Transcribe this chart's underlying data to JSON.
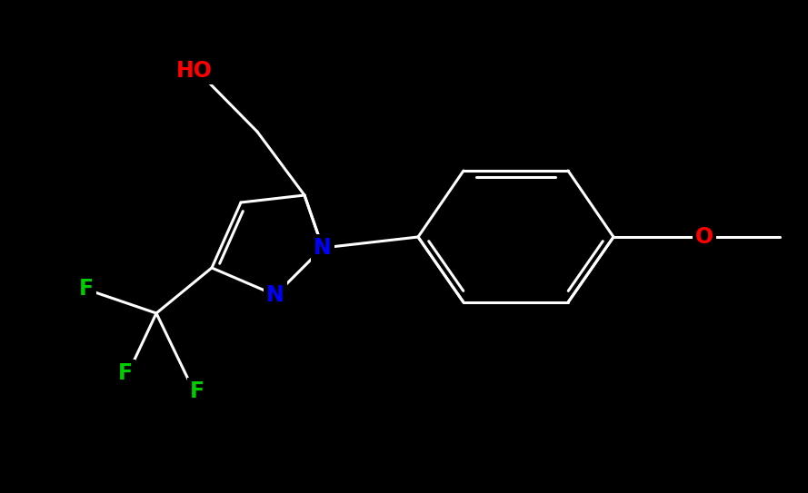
{
  "background_color": "#000000",
  "bond_color": "#ffffff",
  "atom_colors": {
    "N": "#0000ff",
    "O": "#ff0000",
    "F": "#00cc00",
    "C": "#ffffff"
  },
  "bond_width": 2.2,
  "font_size_atoms": 17,
  "lw": 2.2
}
